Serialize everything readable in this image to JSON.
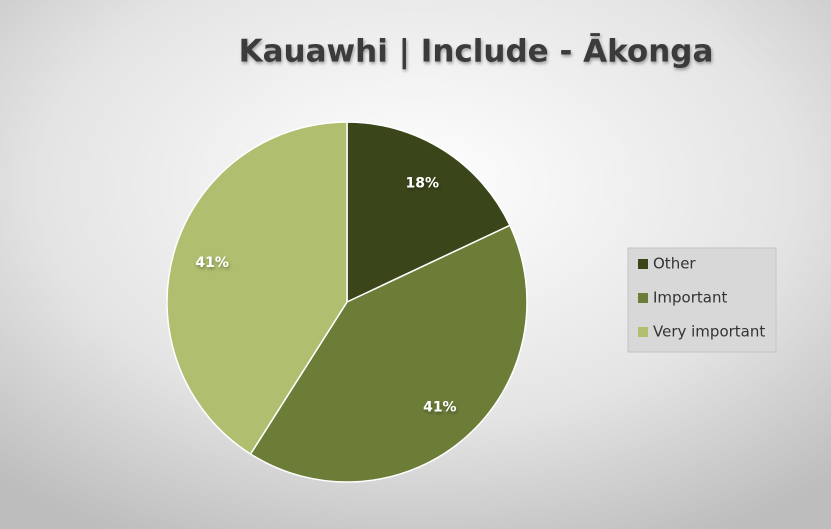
{
  "chart_data": {
    "type": "pie",
    "title": "Kauawhi | Include - Ākonga",
    "categories": [
      "Other",
      "Important",
      "Very important"
    ],
    "values": [
      18,
      41,
      41
    ],
    "value_labels": [
      "18%",
      "41%",
      "41%"
    ],
    "colors": [
      "#3a4619",
      "#6c7d38",
      "#afbf6f"
    ],
    "legend": "right"
  }
}
